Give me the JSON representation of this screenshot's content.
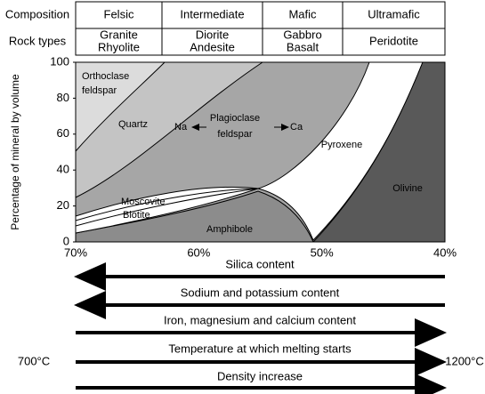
{
  "table": {
    "composition_label": "Composition",
    "rocks_label": "Rock types",
    "columns": [
      {
        "composition": "Felsic",
        "rocks": [
          "Granite",
          "Rhyolite"
        ]
      },
      {
        "composition": "Intermediate",
        "rocks": [
          "Diorite",
          "Andesite"
        ]
      },
      {
        "composition": "Mafic",
        "rocks": [
          "Gabbro",
          "Basalt"
        ]
      },
      {
        "composition": "Ultramafic",
        "rocks": [
          "Peridotite"
        ]
      }
    ]
  },
  "plot": {
    "y_axis_label": "Percentage of mineral by volume",
    "yticks": [
      0,
      20,
      40,
      60,
      80,
      100
    ],
    "xticks": [
      "70%",
      "60%",
      "50%",
      "40%"
    ],
    "minerals": {
      "orthoclase": [
        "Orthoclase",
        "feldspar"
      ],
      "quartz": "Quartz",
      "plagioclase": [
        "Plagioclase",
        "feldspar"
      ],
      "sodium": "Na",
      "calcium": "Ca",
      "pyroxene": "Pyroxene",
      "olivine": "Olivine",
      "moscovite": "Moscovite",
      "biotite": "Biotite",
      "amphibole": "Amphibole"
    }
  },
  "arrows": [
    {
      "label": "Silica content",
      "direction": "left"
    },
    {
      "label": "Sodium and potassium content",
      "direction": "left"
    },
    {
      "label": "Iron, magnesium and calcium content",
      "direction": "right"
    },
    {
      "label": "Temperature at which melting starts",
      "direction": "right",
      "start": "700°C",
      "end": "1200°C"
    },
    {
      "label": "Density increase",
      "direction": "right"
    }
  ]
}
